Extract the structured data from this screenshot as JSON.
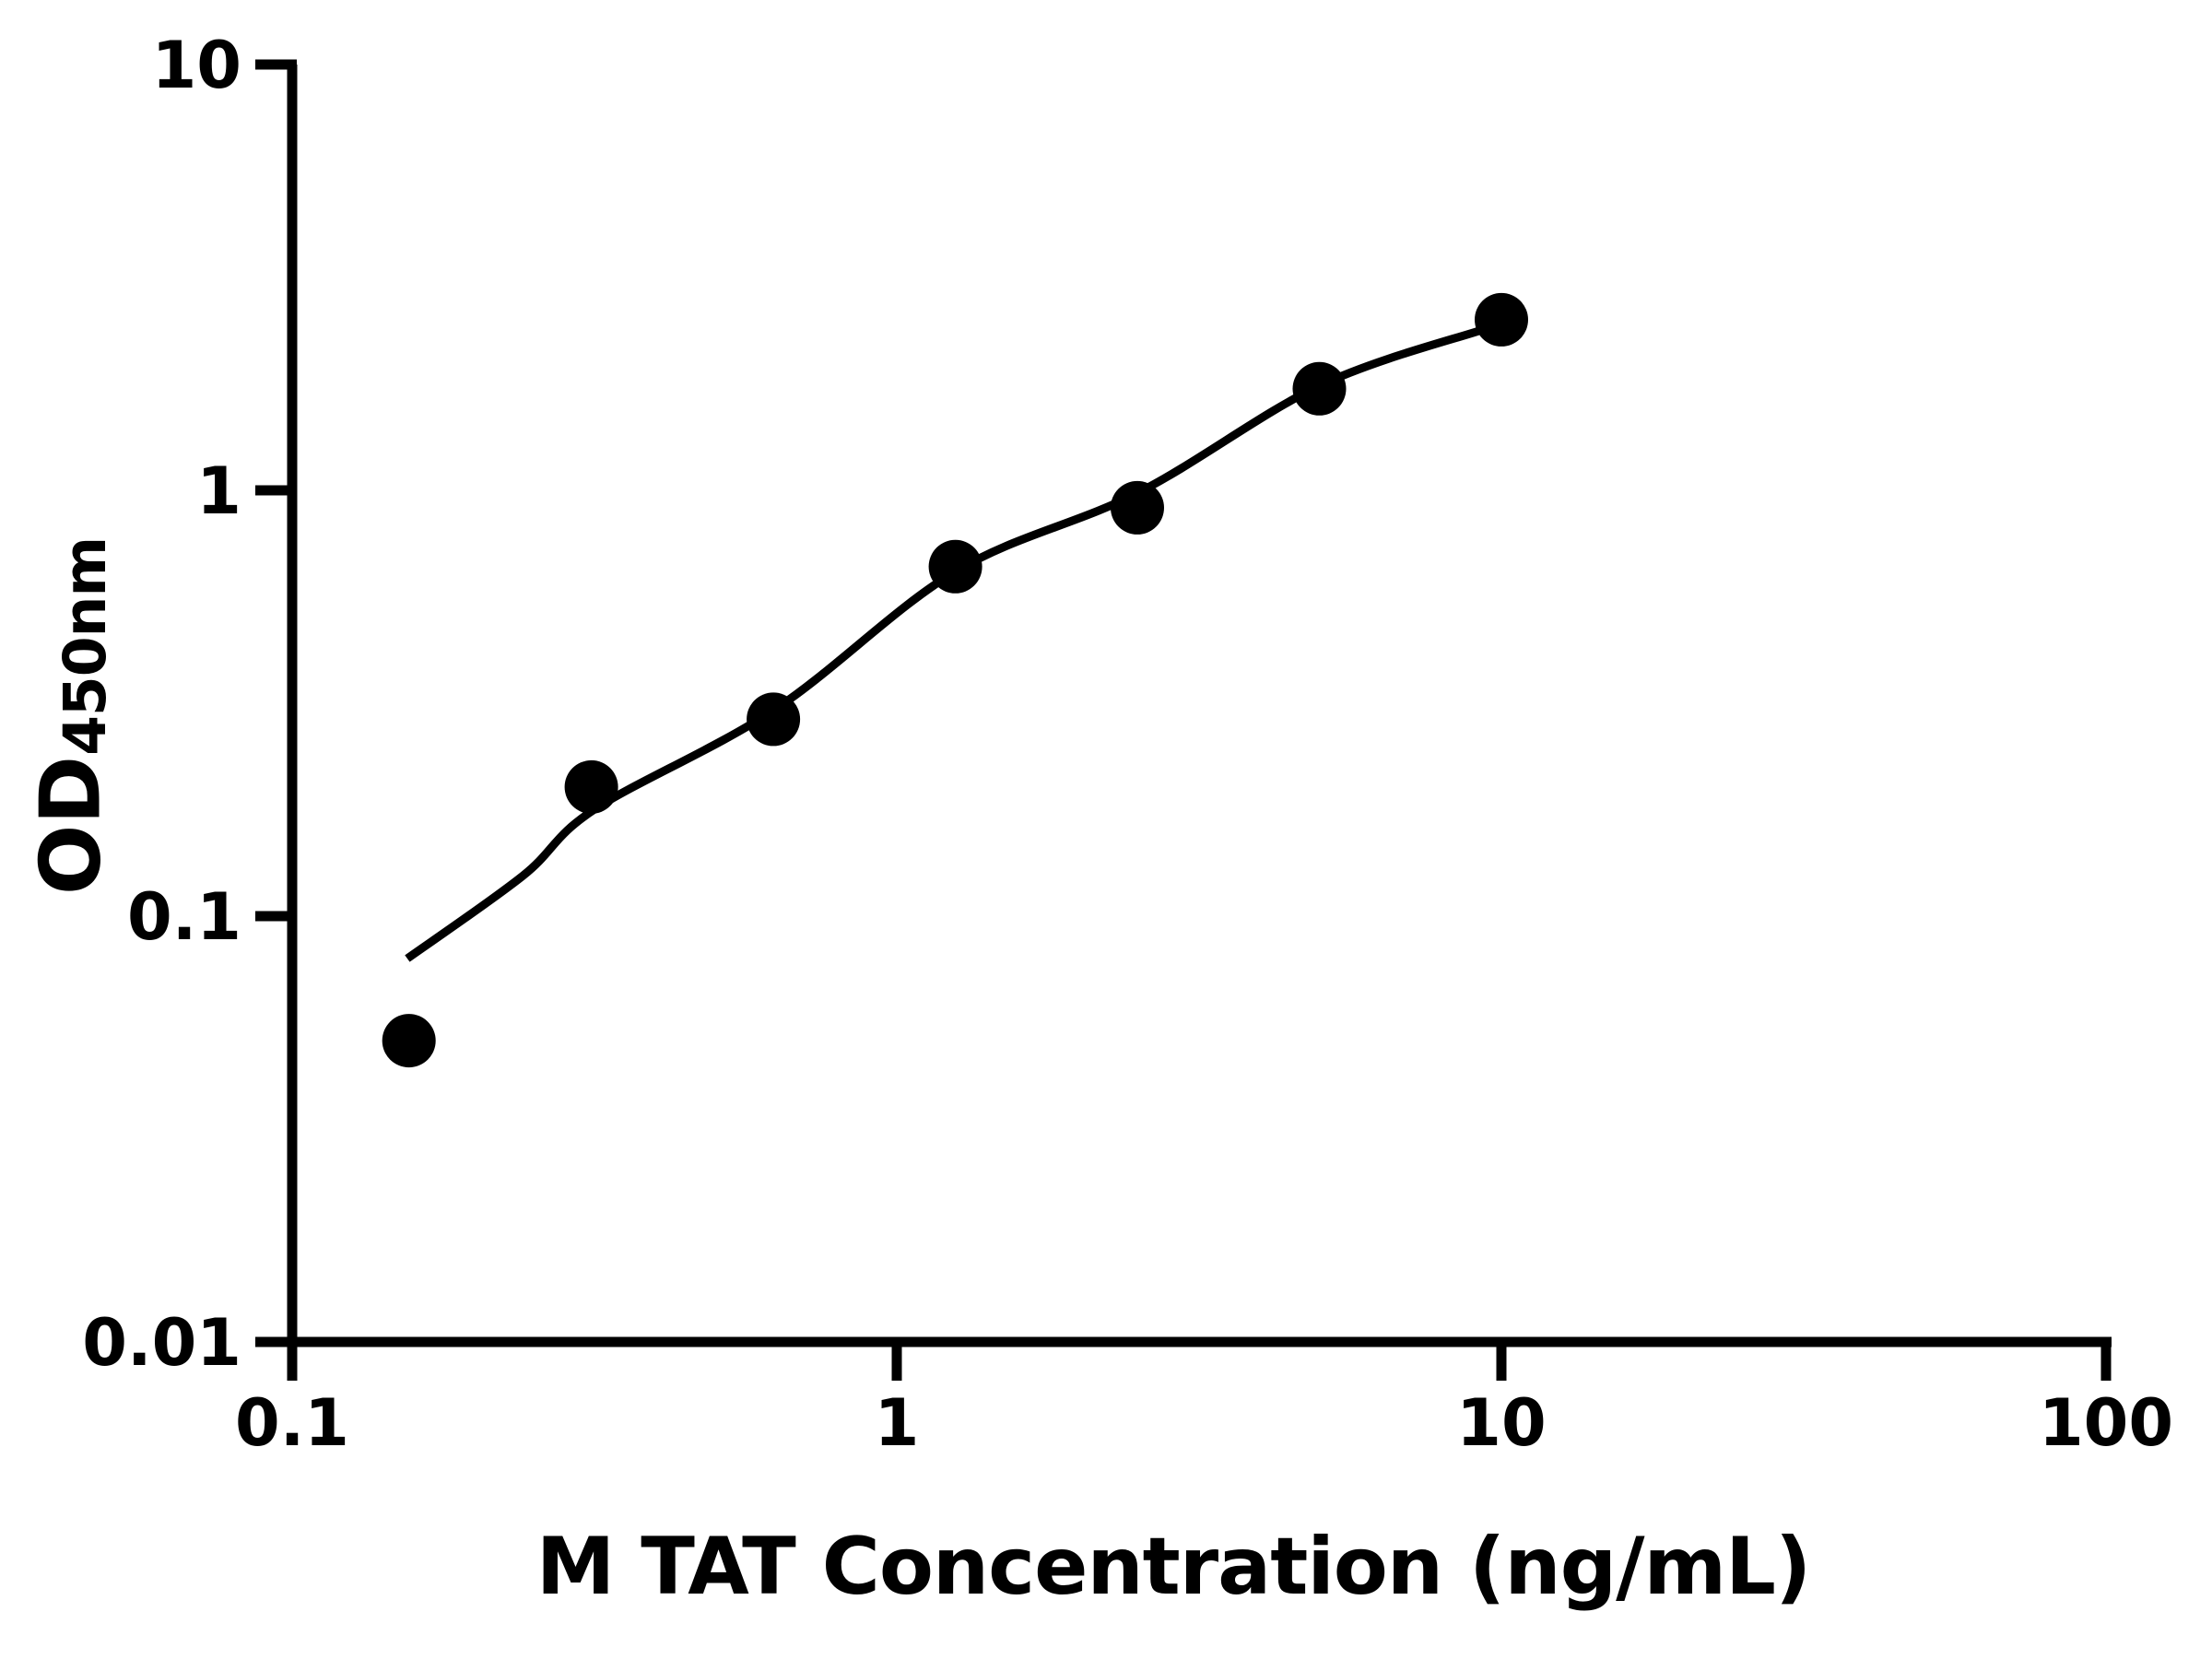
{
  "figure": {
    "background": "#ffffff",
    "border": "none"
  },
  "chart_data": {
    "type": "scatter",
    "title": "",
    "xlabel": "M TAT Concentration (ng/mL)",
    "ylabel": "OD450nm",
    "ylabel_main": "OD",
    "ylabel_sub": "450nm",
    "x_scale": "log",
    "y_scale": "log",
    "xlim": [
      0.1,
      100
    ],
    "ylim": [
      0.01,
      10
    ],
    "x_tick_values": [
      0.1,
      1,
      10,
      100
    ],
    "x_tick_labels": [
      "0.1",
      "1",
      "10",
      "100"
    ],
    "y_tick_values": [
      10,
      1,
      0.1,
      0.01
    ],
    "y_tick_labels": [
      "10",
      "1",
      "0.1",
      "0.01"
    ],
    "grid": false,
    "legend": "none",
    "axis_color": "#000000",
    "marker_color": "#000000",
    "line_color": "#000000",
    "series": [
      {
        "name": "standard-points",
        "type": "scatter",
        "color": "#000000",
        "points": [
          {
            "x": 0.156,
            "y": 0.051
          },
          {
            "x": 0.3125,
            "y": 0.201
          },
          {
            "x": 0.625,
            "y": 0.29
          },
          {
            "x": 1.25,
            "y": 0.662
          },
          {
            "x": 2.5,
            "y": 0.91
          },
          {
            "x": 5,
            "y": 1.732
          },
          {
            "x": 10,
            "y": 2.516
          }
        ]
      },
      {
        "name": "fit-curve",
        "type": "line",
        "color": "#000000",
        "points": [
          {
            "x": 0.155,
            "y": 0.0795
          },
          {
            "x": 0.241,
            "y": 0.1245
          },
          {
            "x": 0.316,
            "y": 0.178
          },
          {
            "x": 0.629,
            "y": 0.306
          },
          {
            "x": 1.25,
            "y": 0.645
          },
          {
            "x": 2.5,
            "y": 0.985
          },
          {
            "x": 5,
            "y": 1.76
          },
          {
            "x": 9.36,
            "y": 2.39
          }
        ]
      }
    ]
  }
}
